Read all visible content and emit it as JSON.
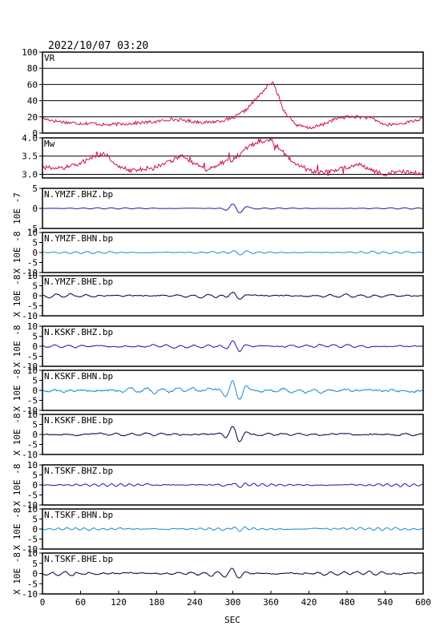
{
  "timestamp": "2022/10/07 03:20",
  "x_axis": {
    "label": "SEC",
    "ticks": [
      "0",
      "60",
      "120",
      "180",
      "240",
      "300",
      "360",
      "420",
      "480",
      "540",
      "600"
    ],
    "range": [
      0,
      600
    ]
  },
  "colors": {
    "frame": "#000000",
    "vr_line": "#d0144a",
    "mw_line": "#d0144a",
    "bhz": "#1a1a9e",
    "bhn": "#1a8ad4",
    "bhe": "#000040"
  },
  "chart_data": [
    {
      "type": "line",
      "label": "VR",
      "ylim": [
        0,
        100
      ],
      "yticks": [
        "0",
        "20",
        "40",
        "60",
        "80",
        "100"
      ],
      "grid": true,
      "x": [
        0,
        20,
        40,
        60,
        80,
        100,
        120,
        140,
        160,
        180,
        200,
        220,
        240,
        260,
        280,
        300,
        320,
        340,
        355,
        362,
        370,
        380,
        400,
        420,
        440,
        460,
        480,
        500,
        520,
        540,
        560,
        580,
        600
      ],
      "values": [
        18,
        15,
        13,
        12,
        12,
        10,
        11,
        12,
        13,
        14,
        17,
        16,
        14,
        13,
        15,
        18,
        28,
        45,
        58,
        63,
        50,
        28,
        10,
        6,
        10,
        17,
        20,
        20,
        18,
        10,
        11,
        14,
        18
      ]
    },
    {
      "type": "line",
      "label": "Mw",
      "ylim": [
        2.9,
        4.0
      ],
      "yticks": [
        "3.0",
        "3.5",
        "4.0"
      ],
      "grid": true,
      "x": [
        0,
        20,
        40,
        60,
        80,
        100,
        120,
        140,
        160,
        180,
        200,
        220,
        240,
        260,
        280,
        300,
        320,
        340,
        360,
        380,
        400,
        420,
        440,
        460,
        480,
        500,
        520,
        540,
        560,
        580,
        600
      ],
      "values": [
        3.2,
        3.15,
        3.2,
        3.3,
        3.5,
        3.55,
        3.2,
        3.1,
        3.15,
        3.2,
        3.35,
        3.5,
        3.3,
        3.1,
        3.3,
        3.4,
        3.7,
        3.9,
        3.95,
        3.6,
        3.25,
        3.1,
        3.05,
        3.1,
        3.2,
        3.3,
        3.1,
        3.0,
        3.1,
        3.05,
        3.0
      ],
      "noise": 0.06
    },
    {
      "type": "line",
      "label": "N.YMZF.BHZ.bp",
      "ylabel": "10E -7",
      "exponent": -7,
      "ylim": [
        -5,
        5
      ],
      "yticks": [
        "-5",
        "0",
        "5"
      ],
      "component": "bhz",
      "event_amplitude": 1.3,
      "background": 0.05,
      "ripple": 0.15,
      "period": 22
    },
    {
      "type": "line",
      "label": "N.YMZF.BHN.bp",
      "ylabel": "X 10E -8",
      "exponent": -8,
      "ylim": [
        -10,
        10
      ],
      "yticks": [
        "-10",
        "-5",
        "0",
        "5",
        "10"
      ],
      "component": "bhn",
      "event_amplitude": 0.9,
      "background": 0.25,
      "ripple": 0.5,
      "period": 18
    },
    {
      "type": "line",
      "label": "N.YMZF.BHE.bp",
      "ylabel": "X 10E -8",
      "exponent": -8,
      "ylim": [
        -10,
        10
      ],
      "yticks": [
        "-10",
        "-5",
        "0",
        "5",
        "10"
      ],
      "component": "bhe",
      "event_amplitude": 2.3,
      "background": 0.6,
      "ripple": 0.7,
      "period": 24
    },
    {
      "type": "line",
      "label": "N.KSKF.BHZ.bp",
      "ylabel": "X 10E -8",
      "exponent": -8,
      "ylim": [
        -10,
        10
      ],
      "yticks": [
        "-10",
        "-5",
        "0",
        "5",
        "10"
      ],
      "component": "bhz",
      "event_amplitude": 2.6,
      "background": 0.6,
      "ripple": 0.7,
      "period": 22
    },
    {
      "type": "line",
      "label": "N.KSKF.BHN.bp",
      "ylabel": "X 10E -8",
      "exponent": -8,
      "ylim": [
        -10,
        10
      ],
      "yticks": [
        "-10",
        "-5",
        "0",
        "5",
        "10"
      ],
      "component": "bhn",
      "event_amplitude": 5.2,
      "background": 1.2,
      "ripple": 1.0,
      "period": 24
    },
    {
      "type": "line",
      "label": "N.KSKF.BHE.bp",
      "ylabel": "X 10E -8",
      "exponent": -8,
      "ylim": [
        -10,
        10
      ],
      "yticks": [
        "-10",
        "-5",
        "0",
        "5",
        "10"
      ],
      "component": "bhe",
      "event_amplitude": 4.5,
      "background": 0.7,
      "ripple": 0.6,
      "period": 24
    },
    {
      "type": "line",
      "label": "N.TSKF.BHZ.bp",
      "ylabel": "X 10E -8",
      "exponent": -8,
      "ylim": [
        -10,
        10
      ],
      "yticks": [
        "-10",
        "-5",
        "0",
        "5",
        "10"
      ],
      "component": "bhz",
      "event_amplitude": 0.9,
      "background": 0.4,
      "ripple": 0.6,
      "period": 14
    },
    {
      "type": "line",
      "label": "N.TSKF.BHN.bp",
      "ylabel": "X 10E -8",
      "exponent": -8,
      "ylim": [
        -10,
        10
      ],
      "yticks": [
        "-10",
        "-5",
        "0",
        "5",
        "10"
      ],
      "component": "bhn",
      "event_amplitude": 0.9,
      "background": 0.5,
      "ripple": 0.6,
      "period": 14
    },
    {
      "type": "line",
      "label": "N.TSKF.BHE.bp",
      "ylabel": "X 10E -8",
      "exponent": -8,
      "ylim": [
        -10,
        10
      ],
      "yticks": [
        "-10",
        "-5",
        "0",
        "5",
        "10"
      ],
      "component": "bhe",
      "event_amplitude": 2.6,
      "background": 0.7,
      "ripple": 0.8,
      "period": 20
    }
  ]
}
